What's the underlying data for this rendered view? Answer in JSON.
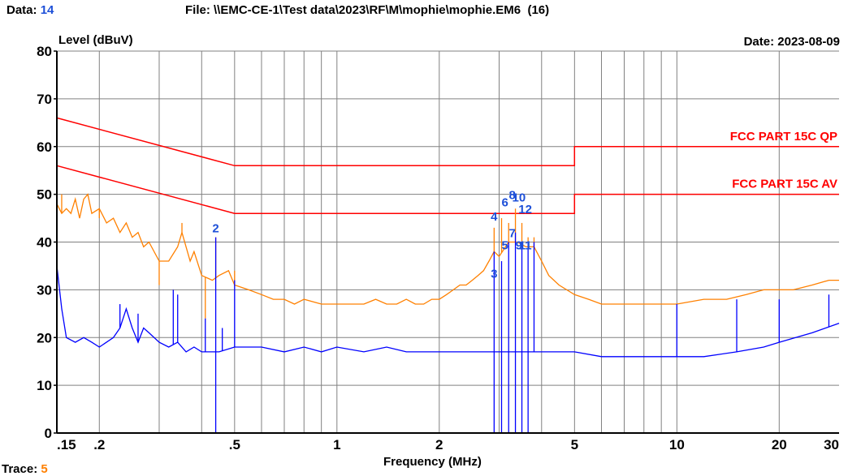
{
  "header": {
    "data_label": "Data:",
    "data_value": "14",
    "file_label": "File:",
    "file_path": "\\\\EMC-CE-1\\Test data\\2023\\RF\\M\\mophie\\mophie.EM6  (16)",
    "date_label": "Date:",
    "date_value": "2023-08-09"
  },
  "footer": {
    "trace_label": "Trace:",
    "trace_value": "5"
  },
  "colors": {
    "limit": "#ff0000",
    "peak_trace": "#ff8000",
    "average_trace": "#0000ff",
    "grid": "#808080",
    "marker_text": "#1e50d8"
  },
  "chart_data": {
    "type": "line",
    "title": "",
    "ylabel": "Level (dBuV)",
    "xlabel": "Frequency (MHz)",
    "x_scale": "log",
    "xlim": [
      0.15,
      30
    ],
    "ylim": [
      0,
      80
    ],
    "grid": true,
    "y_ticks": [
      0,
      10,
      20,
      30,
      40,
      50,
      60,
      70,
      80
    ],
    "x_tick_labels": [
      {
        "value": 0.15,
        "label": ".15"
      },
      {
        "value": 0.2,
        "label": ".2"
      },
      {
        "value": 0.5,
        "label": ".5"
      },
      {
        "value": 1,
        "label": "1"
      },
      {
        "value": 2,
        "label": "2"
      },
      {
        "value": 5,
        "label": "5"
      },
      {
        "value": 10,
        "label": "10"
      },
      {
        "value": 20,
        "label": "20"
      },
      {
        "value": 30,
        "label": "30"
      }
    ],
    "limits": [
      {
        "name": "FCC PART 15C QP",
        "points": [
          [
            0.15,
            66
          ],
          [
            0.5,
            56
          ],
          [
            5,
            56
          ],
          [
            5,
            60
          ],
          [
            30,
            60
          ]
        ]
      },
      {
        "name": "FCC PART 15C AV",
        "points": [
          [
            0.15,
            56
          ],
          [
            0.5,
            46
          ],
          [
            5,
            46
          ],
          [
            5,
            50
          ],
          [
            30,
            50
          ]
        ]
      }
    ],
    "series": [
      {
        "key": "peak",
        "points": [
          [
            0.15,
            48
          ],
          [
            0.155,
            46
          ],
          [
            0.16,
            47
          ],
          [
            0.165,
            46
          ],
          [
            0.17,
            49
          ],
          [
            0.175,
            45
          ],
          [
            0.18,
            49
          ],
          [
            0.185,
            50
          ],
          [
            0.19,
            46
          ],
          [
            0.2,
            47
          ],
          [
            0.21,
            44
          ],
          [
            0.22,
            45
          ],
          [
            0.23,
            42
          ],
          [
            0.24,
            44
          ],
          [
            0.25,
            41
          ],
          [
            0.26,
            42
          ],
          [
            0.27,
            39
          ],
          [
            0.28,
            40
          ],
          [
            0.3,
            36
          ],
          [
            0.32,
            36
          ],
          [
            0.34,
            39
          ],
          [
            0.35,
            42
          ],
          [
            0.37,
            36
          ],
          [
            0.38,
            38
          ],
          [
            0.4,
            33
          ],
          [
            0.43,
            32
          ],
          [
            0.45,
            33
          ],
          [
            0.48,
            34
          ],
          [
            0.5,
            31
          ],
          [
            0.55,
            30
          ],
          [
            0.6,
            29
          ],
          [
            0.65,
            28
          ],
          [
            0.7,
            28
          ],
          [
            0.75,
            27
          ],
          [
            0.8,
            28
          ],
          [
            0.9,
            27
          ],
          [
            1.0,
            27
          ],
          [
            1.1,
            27
          ],
          [
            1.2,
            27
          ],
          [
            1.3,
            28
          ],
          [
            1.4,
            27
          ],
          [
            1.5,
            27
          ],
          [
            1.6,
            28
          ],
          [
            1.7,
            27
          ],
          [
            1.8,
            27
          ],
          [
            1.9,
            28
          ],
          [
            2.0,
            28
          ],
          [
            2.1,
            29
          ],
          [
            2.2,
            30
          ],
          [
            2.3,
            31
          ],
          [
            2.4,
            31
          ],
          [
            2.5,
            32
          ],
          [
            2.6,
            33
          ],
          [
            2.7,
            34
          ],
          [
            2.8,
            36
          ],
          [
            2.9,
            38
          ],
          [
            3.0,
            37
          ],
          [
            3.2,
            40
          ],
          [
            3.4,
            40
          ],
          [
            3.6,
            39
          ],
          [
            3.8,
            39
          ],
          [
            4.0,
            36
          ],
          [
            4.2,
            33
          ],
          [
            4.5,
            31
          ],
          [
            5.0,
            29
          ],
          [
            5.5,
            28
          ],
          [
            6,
            27
          ],
          [
            7,
            27
          ],
          [
            8,
            27
          ],
          [
            9,
            27
          ],
          [
            10,
            27
          ],
          [
            12,
            28
          ],
          [
            14,
            28
          ],
          [
            16,
            29
          ],
          [
            18,
            30
          ],
          [
            20,
            30
          ],
          [
            22,
            30
          ],
          [
            25,
            31
          ],
          [
            28,
            32
          ],
          [
            30,
            32
          ]
        ],
        "spikes": [
          [
            0.155,
            50
          ],
          [
            0.2,
            45
          ],
          [
            0.3,
            31
          ],
          [
            0.35,
            44
          ],
          [
            0.41,
            24
          ],
          [
            0.44,
            41
          ],
          [
            0.5,
            34
          ],
          [
            2.9,
            43
          ],
          [
            3.05,
            45
          ],
          [
            3.2,
            44
          ],
          [
            3.35,
            47
          ],
          [
            3.5,
            44
          ],
          [
            3.65,
            41
          ],
          [
            3.8,
            41
          ]
        ]
      },
      {
        "key": "average",
        "points": [
          [
            0.15,
            35
          ],
          [
            0.155,
            26
          ],
          [
            0.16,
            20
          ],
          [
            0.17,
            19
          ],
          [
            0.18,
            20
          ],
          [
            0.19,
            19
          ],
          [
            0.2,
            18
          ],
          [
            0.22,
            20
          ],
          [
            0.23,
            22
          ],
          [
            0.24,
            26
          ],
          [
            0.25,
            22
          ],
          [
            0.26,
            19
          ],
          [
            0.27,
            22
          ],
          [
            0.28,
            21
          ],
          [
            0.3,
            19
          ],
          [
            0.32,
            18
          ],
          [
            0.34,
            19
          ],
          [
            0.36,
            17
          ],
          [
            0.38,
            18
          ],
          [
            0.4,
            17
          ],
          [
            0.45,
            17
          ],
          [
            0.5,
            18
          ],
          [
            0.6,
            18
          ],
          [
            0.7,
            17
          ],
          [
            0.8,
            18
          ],
          [
            0.9,
            17
          ],
          [
            1.0,
            18
          ],
          [
            1.2,
            17
          ],
          [
            1.4,
            18
          ],
          [
            1.6,
            17
          ],
          [
            1.8,
            17
          ],
          [
            2.0,
            17
          ],
          [
            2.2,
            17
          ],
          [
            2.5,
            17
          ],
          [
            2.8,
            17
          ],
          [
            3.0,
            17
          ],
          [
            3.5,
            17
          ],
          [
            4.0,
            17
          ],
          [
            5.0,
            17
          ],
          [
            6,
            16
          ],
          [
            7,
            16
          ],
          [
            8,
            16
          ],
          [
            10,
            16
          ],
          [
            12,
            16
          ],
          [
            15,
            17
          ],
          [
            18,
            18
          ],
          [
            20,
            19
          ],
          [
            25,
            21
          ],
          [
            30,
            23
          ]
        ],
        "spikes": [
          [
            0.23,
            27
          ],
          [
            0.26,
            25
          ],
          [
            0.33,
            30
          ],
          [
            0.34,
            29
          ],
          [
            0.41,
            24
          ],
          [
            0.44,
            41
          ],
          [
            0.46,
            22
          ],
          [
            0.5,
            32
          ],
          [
            2.9,
            38
          ],
          [
            3.05,
            36
          ],
          [
            3.2,
            40
          ],
          [
            3.35,
            42
          ],
          [
            3.5,
            40
          ],
          [
            3.65,
            40
          ],
          [
            3.8,
            40
          ],
          [
            10,
            27
          ],
          [
            15,
            28
          ],
          [
            20,
            28
          ],
          [
            28,
            29
          ]
        ],
        "dips": [
          0.44,
          2.9,
          3.05,
          3.2,
          3.35,
          3.5,
          3.65
        ]
      }
    ],
    "markers": [
      {
        "label": "2",
        "x": 0.44,
        "y": 42
      },
      {
        "label": "3",
        "x": 2.9,
        "y": 32.5
      },
      {
        "label": "4",
        "x": 2.9,
        "y": 44.5
      },
      {
        "label": "5",
        "x": 3.12,
        "y": 38.5
      },
      {
        "label": "6",
        "x": 3.12,
        "y": 47.5
      },
      {
        "label": "7",
        "x": 3.28,
        "y": 41
      },
      {
        "label": "8",
        "x": 3.28,
        "y": 49
      },
      {
        "label": "9",
        "x": 3.43,
        "y": 38.5
      },
      {
        "label": "10",
        "x": 3.43,
        "y": 48.5
      },
      {
        "label": "11",
        "x": 3.58,
        "y": 38.5
      },
      {
        "label": "12",
        "x": 3.58,
        "y": 46
      }
    ]
  }
}
